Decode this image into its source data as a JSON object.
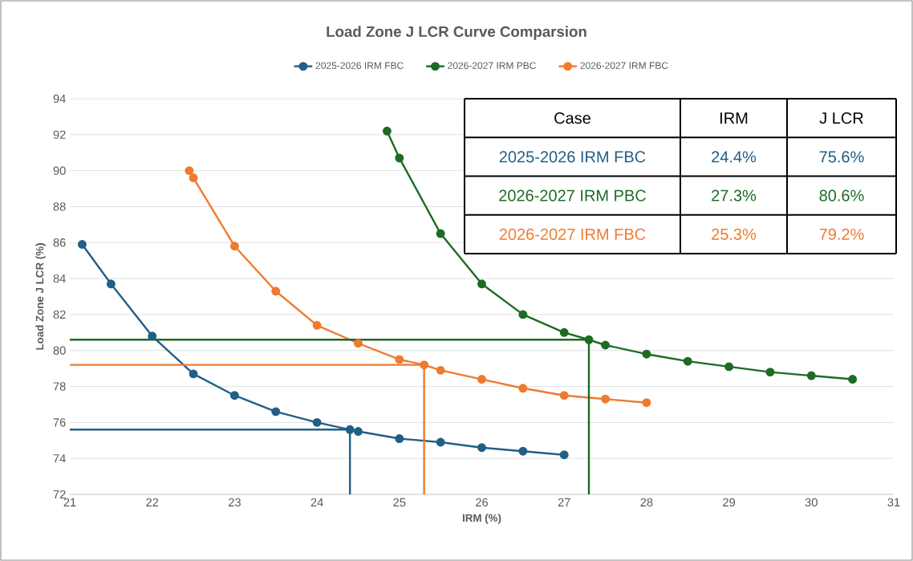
{
  "chart_data": {
    "type": "line",
    "title": "Load Zone J LCR Curve Comparsion",
    "xlabel": "IRM (%)",
    "ylabel": "Load Zone J LCR (%)",
    "xlim": [
      21,
      31
    ],
    "xticks": [
      21,
      22,
      23,
      24,
      25,
      26,
      27,
      28,
      29,
      30,
      31
    ],
    "ylim": [
      72,
      94
    ],
    "yticks": [
      72,
      74,
      76,
      78,
      80,
      82,
      84,
      86,
      88,
      90,
      92,
      94
    ],
    "grid": "y",
    "legend": "top",
    "marker": "circle",
    "line_style": "solid",
    "series": [
      {
        "name": "2025-2026 IRM FBC",
        "color": "#215f86",
        "x": [
          21.15,
          21.5,
          22,
          22.5,
          23,
          23.5,
          24,
          24.4,
          24.5,
          25,
          25.5,
          26,
          26.5,
          27
        ],
        "values": [
          85.9,
          83.7,
          80.8,
          78.7,
          77.5,
          76.6,
          76.0,
          75.6,
          75.5,
          75.1,
          74.9,
          74.6,
          74.4,
          74.2
        ]
      },
      {
        "name": "2026-2027 IRM PBC",
        "color": "#1e6b24",
        "x": [
          24.85,
          25,
          25.5,
          26,
          26.5,
          27,
          27.3,
          27.5,
          28,
          28.5,
          29,
          29.5,
          30,
          30.5
        ],
        "values": [
          92.2,
          90.7,
          86.5,
          83.7,
          82.0,
          81.0,
          80.6,
          80.3,
          79.8,
          79.4,
          79.1,
          78.8,
          78.6,
          78.4
        ]
      },
      {
        "name": "2026-2027 IRM FBC",
        "color": "#ee7b30",
        "x": [
          22.45,
          22.5,
          23,
          23.5,
          24,
          24.5,
          25,
          25.3,
          25.5,
          26,
          26.5,
          27,
          27.5,
          28
        ],
        "values": [
          90.0,
          89.6,
          85.8,
          83.3,
          81.4,
          80.4,
          79.5,
          79.2,
          78.9,
          78.4,
          77.9,
          77.5,
          77.3,
          77.1
        ]
      },
      {
        "color": "#215f86",
        "marker": "none",
        "x": [
          21,
          24.4,
          24.4
        ],
        "values": [
          75.6,
          75.6,
          72
        ]
      },
      {
        "color": "#1e6b24",
        "marker": "none",
        "x": [
          21,
          27.3,
          27.3
        ],
        "values": [
          80.6,
          80.6,
          72
        ]
      },
      {
        "color": "#ee7b30",
        "marker": "none",
        "x": [
          21,
          25.3,
          25.3
        ],
        "values": [
          79.2,
          79.2,
          72
        ]
      }
    ],
    "annotations": [
      "Case",
      "IRM",
      "J LCR",
      "2025-2026 IRM FBC",
      "24.4%",
      "75.6%",
      "2026-2027 IRM PBC",
      "27.3%",
      "80.6%",
      "2026-2027 IRM FBC",
      "25.3%",
      "79.2%"
    ]
  }
}
